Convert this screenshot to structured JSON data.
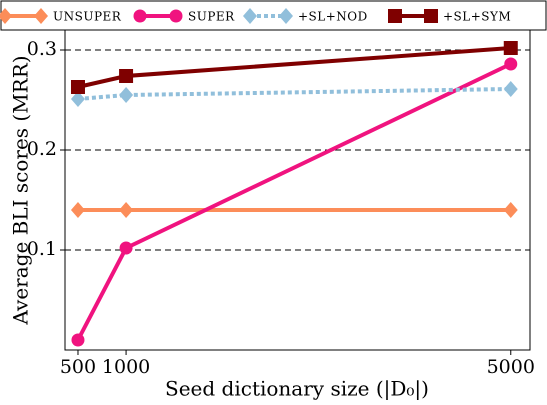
{
  "chart_data": {
    "type": "line",
    "x": [
      500,
      1000,
      5000
    ],
    "xlabel": "Seed dictionary size (|D₀|)",
    "ylabel": "Average BLI scores (MRR)",
    "xlim": [
      365,
      5200
    ],
    "xticks": [
      500,
      1000,
      5000
    ],
    "ylim": [
      0,
      0.32
    ],
    "yticks": [
      0.1,
      0.2,
      0.3
    ],
    "grid": true,
    "legend": "top",
    "series": [
      {
        "name": "UNSUPER",
        "color": "#fc8d59",
        "marker": "diamond",
        "dash": "solid",
        "values": [
          0.14,
          0.14,
          0.14
        ]
      },
      {
        "name": "SUPER",
        "color": "#f0137f",
        "marker": "circle",
        "dash": "solid",
        "values": [
          0.01,
          0.102,
          0.286
        ]
      },
      {
        "name": "+SL+NOD",
        "color": "#91bfdb",
        "marker": "diamond",
        "dash": "dotted",
        "values": [
          0.251,
          0.255,
          0.261
        ]
      },
      {
        "name": "+SL+SYM",
        "color": "#7f0000",
        "marker": "square",
        "dash": "solid",
        "values": [
          0.263,
          0.274,
          0.302
        ]
      }
    ]
  }
}
